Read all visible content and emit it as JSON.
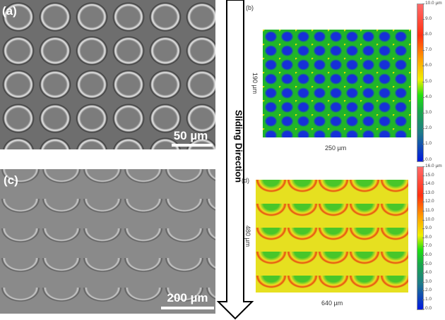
{
  "panels": {
    "a": {
      "label": "(a)",
      "scale": "50 µm"
    },
    "c": {
      "label": "(c)",
      "scale": "200 µm"
    },
    "b": {
      "label": "(b)",
      "height": "190 µm",
      "width": "250 µm",
      "colorbar": [
        "10.0 µm",
        "9.0",
        "8.0",
        "7.0",
        "6.0",
        "5.0",
        "4.0",
        "3.0",
        "2.0",
        "1.0",
        "0.0"
      ]
    },
    "d": {
      "label": "(d)",
      "height": "480 µm",
      "width": "640 µm",
      "colorbar": [
        "16.0 µm",
        "15.0",
        "14.0",
        "13.0",
        "12.0",
        "11.0",
        "10.0",
        "9.0",
        "8.0",
        "7.0",
        "6.0",
        "5.0",
        "4.0",
        "3.0",
        "2.0",
        "1.0",
        "0.0"
      ]
    }
  },
  "arrow": {
    "label": "Sliding Direction"
  }
}
